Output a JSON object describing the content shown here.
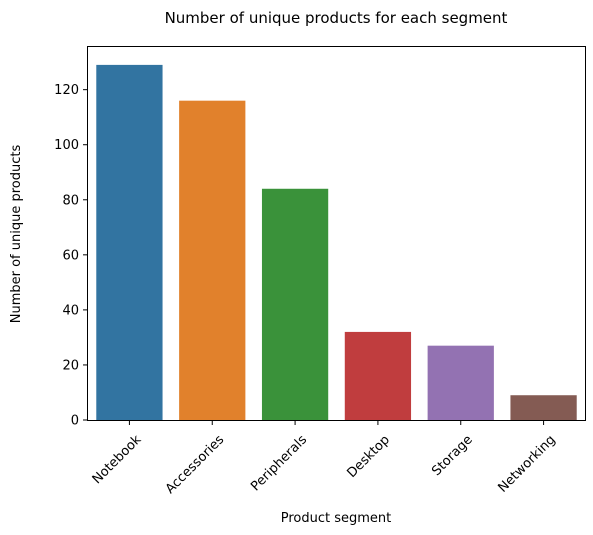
{
  "chart_data": {
    "type": "bar",
    "title": "Number of unique products for each segment",
    "xlabel": "Product segment",
    "ylabel": "Number of unique products",
    "categories": [
      "Notebook",
      "Accessories",
      "Peripherals",
      "Desktop",
      "Storage",
      "Networking"
    ],
    "values": [
      129,
      116,
      84,
      32,
      27,
      9
    ],
    "colors": [
      "#3274a1",
      "#e1812c",
      "#3a923a",
      "#c03d3e",
      "#9372b2",
      "#845b53"
    ],
    "ylim": [
      0,
      135.5
    ],
    "yticks": [
      0,
      20,
      40,
      60,
      80,
      100,
      120
    ],
    "grid": false,
    "legend": "none"
  }
}
